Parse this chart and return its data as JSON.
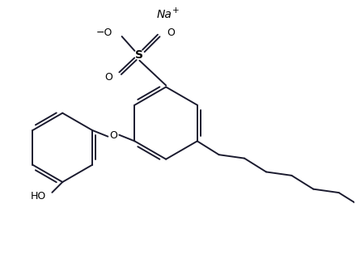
{
  "background_color": "#ffffff",
  "line_color": "#1a1a2e",
  "text_color": "#000000",
  "na_label": "Na",
  "na_superscript": "+",
  "ho_label": "HO",
  "o_label": "O",
  "s_label": "S",
  "o_minus_label": "−O",
  "o_right_label": "O",
  "o_left_label": "O",
  "figsize": [
    4.4,
    3.25
  ],
  "dpi": 100,
  "lw": 1.4
}
